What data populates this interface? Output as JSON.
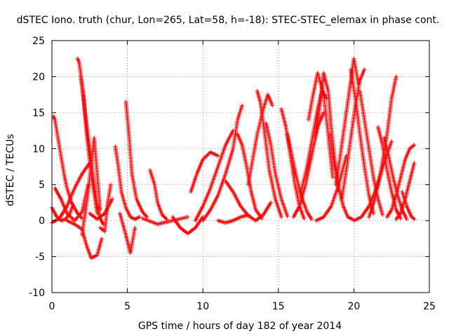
{
  "chart_data": {
    "type": "scatter",
    "title": "dSTEC Iono. truth (chur, Lon=265, Lat=58, h=-18): STEC-STEC_elemax in phase cont.",
    "xlabel": "GPS time / hours of day 182 of year 2014",
    "ylabel": "dSTEC  / TECUs",
    "xlim": [
      0,
      25
    ],
    "ylim": [
      -10,
      25
    ],
    "xticks": [
      0,
      5,
      10,
      15,
      20,
      25
    ],
    "yticks": [
      -10,
      -5,
      0,
      5,
      10,
      15,
      20,
      25
    ],
    "grid": true,
    "marker": "plus",
    "color": "#ff0000",
    "arcs": [
      {
        "x": [
          0.0,
          0.3,
          0.6,
          0.9,
          1.2,
          1.4
        ],
        "y": [
          1.8,
          0.6,
          0.0,
          0.2,
          1.0,
          2.2
        ]
      },
      {
        "x": [
          0.1,
          0.2,
          0.4,
          0.6,
          0.8,
          1.0,
          1.3,
          1.7,
          2.0
        ],
        "y": [
          14.5,
          14.0,
          11.5,
          9.0,
          6.5,
          4.5,
          2.5,
          1.0,
          0.3
        ]
      },
      {
        "x": [
          0.2,
          0.6,
          1.0,
          1.5,
          2.0,
          2.4
        ],
        "y": [
          4.5,
          3.0,
          1.0,
          0.0,
          1.2,
          5.0
        ]
      },
      {
        "x": [
          0.0,
          0.5,
          1.0,
          1.5,
          2.0,
          2.5
        ],
        "y": [
          -0.3,
          0.3,
          2.0,
          4.5,
          6.5,
          8.0
        ]
      },
      {
        "x": [
          1.7,
          1.8,
          2.0,
          2.2,
          2.5,
          2.8,
          3.0,
          3.2,
          3.4
        ],
        "y": [
          22.5,
          22.0,
          19.0,
          15.0,
          10.0,
          5.0,
          2.0,
          0.3,
          -0.5
        ]
      },
      {
        "x": [
          1.9,
          2.1,
          2.3,
          2.6,
          3.0
        ],
        "y": [
          20.0,
          17.0,
          12.0,
          6.5,
          1.0
        ]
      },
      {
        "x": [
          1.0,
          1.5,
          2.0,
          2.3,
          2.6,
          3.0,
          3.3
        ],
        "y": [
          0.0,
          -0.5,
          -1.2,
          -3.5,
          -5.2,
          -4.8,
          -2.5
        ]
      },
      {
        "x": [
          2.0,
          2.4,
          2.8,
          3.2
        ],
        "y": [
          -2.0,
          4.0,
          11.5,
          1.5
        ]
      },
      {
        "x": [
          2.5,
          3.0,
          3.5,
          4.0
        ],
        "y": [
          1.0,
          0.2,
          1.0,
          3.0
        ]
      },
      {
        "x": [
          3.2,
          3.5,
          3.7,
          3.9
        ],
        "y": [
          -1.0,
          -1.5,
          2.5,
          5.0
        ]
      },
      {
        "x": [
          4.2,
          4.4,
          4.6,
          4.9,
          5.2,
          5.5,
          5.8
        ],
        "y": [
          10.3,
          7.5,
          4.0,
          1.8,
          0.5,
          0.2,
          0.5
        ]
      },
      {
        "x": [
          4.9,
          5.1,
          5.3,
          5.6,
          6.0,
          6.3
        ],
        "y": [
          16.5,
          12.0,
          6.5,
          3.0,
          1.2,
          0.5
        ]
      },
      {
        "x": [
          4.5,
          4.9,
          5.2,
          5.5
        ],
        "y": [
          1.0,
          -2.0,
          -4.5,
          -1.0
        ]
      },
      {
        "x": [
          6.5,
          6.8,
          7.0,
          7.3,
          7.6
        ],
        "y": [
          7.0,
          5.0,
          2.5,
          0.8,
          0.2
        ]
      },
      {
        "x": [
          6.0,
          7.0,
          8.0,
          9.0
        ],
        "y": [
          0.3,
          -0.5,
          0.0,
          0.5
        ]
      },
      {
        "x": [
          8.0,
          8.5,
          9.0,
          9.5,
          10.0
        ],
        "y": [
          0.5,
          -1.0,
          -1.8,
          -1.0,
          0.5
        ]
      },
      {
        "x": [
          9.2,
          9.6,
          10.0,
          10.5,
          11.0
        ],
        "y": [
          4.0,
          6.5,
          8.5,
          9.5,
          9.0
        ]
      },
      {
        "x": [
          9.5,
          10.0,
          10.5,
          11.0,
          11.5,
          12.0
        ],
        "y": [
          0.0,
          2.0,
          4.5,
          7.5,
          10.5,
          12.5
        ]
      },
      {
        "x": [
          10.0,
          10.5,
          11.0,
          11.5,
          12.0,
          12.3,
          12.6
        ],
        "y": [
          0.0,
          1.5,
          3.5,
          6.5,
          10.0,
          14.0,
          16.0
        ]
      },
      {
        "x": [
          11.0,
          11.5,
          12.0,
          12.5,
          13.0
        ],
        "y": [
          0.0,
          -0.3,
          0.0,
          0.5,
          0.8
        ]
      },
      {
        "x": [
          12.3,
          12.6,
          12.9,
          13.2,
          13.5,
          13.9
        ],
        "y": [
          12.0,
          10.5,
          7.5,
          4.0,
          1.5,
          0.3
        ]
      },
      {
        "x": [
          11.5,
          12.0,
          12.5,
          13.0,
          13.5,
          14.0,
          14.5
        ],
        "y": [
          5.5,
          4.0,
          2.0,
          0.7,
          0.0,
          0.8,
          2.5
        ]
      },
      {
        "x": [
          13.0,
          13.3,
          13.6,
          14.0,
          14.3,
          14.6
        ],
        "y": [
          5.0,
          8.5,
          12.0,
          15.5,
          17.5,
          16.0
        ]
      },
      {
        "x": [
          13.6,
          13.8,
          14.1,
          14.4,
          14.8,
          15.2
        ],
        "y": [
          18.0,
          16.5,
          12.0,
          7.0,
          3.0,
          0.5
        ]
      },
      {
        "x": [
          14.2,
          14.5,
          14.8,
          15.2,
          15.6
        ],
        "y": [
          13.5,
          10.5,
          6.5,
          3.0,
          0.6
        ]
      },
      {
        "x": [
          15.2,
          15.5,
          15.8,
          16.1,
          16.4,
          16.7
        ],
        "y": [
          15.5,
          13.0,
          9.0,
          5.0,
          2.0,
          0.3
        ]
      },
      {
        "x": [
          15.6,
          15.9,
          16.2,
          16.5,
          16.9,
          17.2
        ],
        "y": [
          12.0,
          9.0,
          6.0,
          3.5,
          1.2,
          0.2
        ]
      },
      {
        "x": [
          16.0,
          16.4,
          16.8,
          17.2,
          17.6,
          18.0
        ],
        "y": [
          0.5,
          2.0,
          5.0,
          9.0,
          13.0,
          15.0
        ]
      },
      {
        "x": [
          16.5,
          16.9,
          17.3,
          17.6,
          17.9,
          18.2
        ],
        "y": [
          4.0,
          7.5,
          12.0,
          15.5,
          18.0,
          17.0
        ]
      },
      {
        "x": [
          17.0,
          17.3,
          17.6,
          18.0,
          18.3,
          18.6
        ],
        "y": [
          14.0,
          17.5,
          20.5,
          17.5,
          12.0,
          6.0
        ]
      },
      {
        "x": [
          17.4,
          17.7,
          18.0,
          18.3,
          18.5,
          18.8
        ],
        "y": [
          11.0,
          15.0,
          20.5,
          18.0,
          13.0,
          7.0
        ]
      },
      {
        "x": [
          18.4,
          18.7,
          19.0,
          19.3,
          19.6,
          19.9
        ],
        "y": [
          12.0,
          8.0,
          4.5,
          2.0,
          0.5,
          0.2
        ]
      },
      {
        "x": [
          17.5,
          18.0,
          18.5,
          19.0,
          19.5
        ],
        "y": [
          0.0,
          0.5,
          2.0,
          5.0,
          9.0
        ]
      },
      {
        "x": [
          18.8,
          19.1,
          19.4,
          19.7,
          20.0,
          20.3
        ],
        "y": [
          5.0,
          9.0,
          13.5,
          18.0,
          22.5,
          19.0
        ]
      },
      {
        "x": [
          19.2,
          19.5,
          19.8,
          20.1,
          20.4,
          20.7
        ],
        "y": [
          3.0,
          7.0,
          11.5,
          16.0,
          19.5,
          21.0
        ]
      },
      {
        "x": [
          19.8,
          20.1,
          20.4,
          20.7,
          21.0,
          21.3
        ],
        "y": [
          21.0,
          17.0,
          12.0,
          7.5,
          3.5,
          1.0
        ]
      },
      {
        "x": [
          20.4,
          20.7,
          21.0,
          21.3,
          21.6,
          21.9
        ],
        "y": [
          18.0,
          14.0,
          10.0,
          6.0,
          3.0,
          0.8
        ]
      },
      {
        "x": [
          20.0,
          20.5,
          21.0,
          21.5,
          22.0,
          22.5
        ],
        "y": [
          0.0,
          0.5,
          2.0,
          4.5,
          8.0,
          11.0
        ]
      },
      {
        "x": [
          21.0,
          21.4,
          21.8,
          22.2,
          22.5,
          22.8
        ],
        "y": [
          0.5,
          3.0,
          7.0,
          12.0,
          17.0,
          20.0
        ]
      },
      {
        "x": [
          21.6,
          21.9,
          22.2,
          22.5,
          22.8,
          23.1
        ],
        "y": [
          13.0,
          10.5,
          7.0,
          4.0,
          1.5,
          0.3
        ]
      },
      {
        "x": [
          22.0,
          22.3,
          22.6,
          22.9,
          23.2,
          23.5
        ],
        "y": [
          11.5,
          9.0,
          6.0,
          3.5,
          1.5,
          0.2
        ]
      },
      {
        "x": [
          22.2,
          22.5,
          22.8,
          23.1,
          23.4,
          23.7,
          24.0
        ],
        "y": [
          0.5,
          1.5,
          3.5,
          6.0,
          8.5,
          10.0,
          10.5
        ]
      },
      {
        "x": [
          22.8,
          23.1,
          23.4,
          23.7,
          24.0
        ],
        "y": [
          0.2,
          1.0,
          3.0,
          5.5,
          8.0
        ]
      },
      {
        "x": [
          23.2,
          23.5,
          23.8,
          24.0
        ],
        "y": [
          4.0,
          2.0,
          0.6,
          0.2
        ]
      }
    ]
  }
}
